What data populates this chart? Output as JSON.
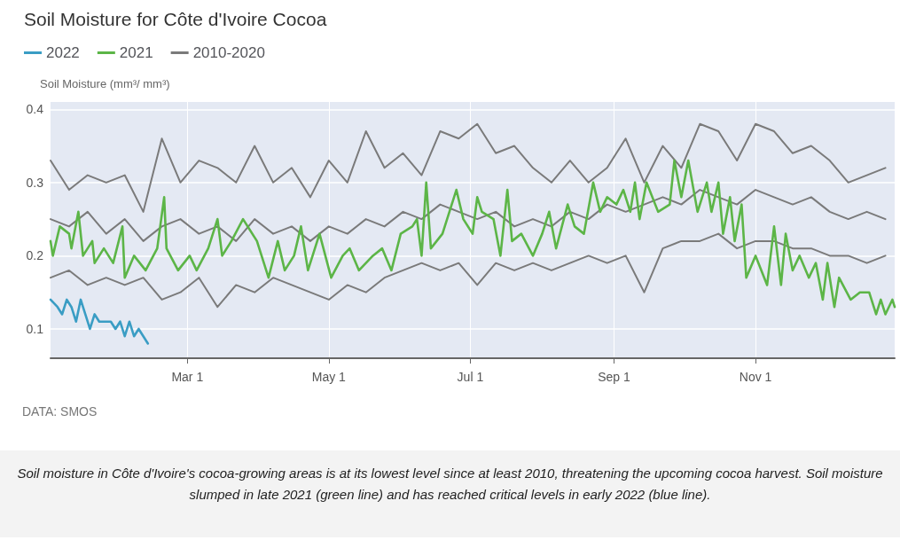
{
  "chart_data": {
    "type": "line",
    "title": "Soil Moisture for Côte d'Ivoire Cocoa",
    "ylabel": "Soil Moisture (mm³/ mm³)",
    "annotations": [
      "DATA: SMOS",
      "Soil moisture in Côte d'Ivoire's cocoa-growing areas is at its lowest level since at least 2010, threatening the upcoming cocoa harvest. Soil moisture slumped in late 2021 (green line) and has reached critical levels in early 2022 (blue line)."
    ],
    "legend": "top left",
    "grid": true,
    "marker": "none",
    "line_style": "solid",
    "xlim": [
      "--01-01",
      "--12-31"
    ],
    "xticks": [
      {
        "value": "--03-01",
        "label": "Mar 1"
      },
      {
        "value": "--05-01",
        "label": "May 1"
      },
      {
        "value": "--07-01",
        "label": "Jul 1"
      },
      {
        "value": "--09-01",
        "label": "Sep 1"
      },
      {
        "value": "--11-01",
        "label": "Nov 1"
      }
    ],
    "ylim": [
      0.06,
      0.41
    ],
    "yticks": [
      0.1,
      0.2,
      0.3,
      0.4
    ],
    "x": [
      "--01-01",
      "--01-09",
      "--01-17",
      "--01-25",
      "--02-02",
      "--02-10",
      "--02-18",
      "--02-26",
      "--03-06",
      "--03-14",
      "--03-22",
      "--03-30",
      "--04-07",
      "--04-15",
      "--04-23",
      "--05-01",
      "--05-09",
      "--05-17",
      "--05-25",
      "--06-02",
      "--06-10",
      "--06-18",
      "--06-26",
      "--07-04",
      "--07-12",
      "--07-20",
      "--07-28",
      "--08-05",
      "--08-13",
      "--08-21",
      "--08-29",
      "--09-06",
      "--09-14",
      "--09-22",
      "--09-30",
      "--10-08",
      "--10-16",
      "--10-24",
      "--11-01",
      "--11-09",
      "--11-17",
      "--11-25",
      "--12-03",
      "--12-11",
      "--12-19",
      "--12-27"
    ],
    "series": [
      {
        "name": "2010-2020",
        "color": "#7a7a7a",
        "values": [
          0.33,
          0.29,
          0.31,
          0.3,
          0.31,
          0.26,
          0.36,
          0.3,
          0.33,
          0.32,
          0.3,
          0.35,
          0.3,
          0.32,
          0.28,
          0.33,
          0.3,
          0.37,
          0.32,
          0.34,
          0.31,
          0.37,
          0.36,
          0.38,
          0.34,
          0.35,
          0.32,
          0.3,
          0.33,
          0.3,
          0.32,
          0.36,
          0.3,
          0.35,
          0.32,
          0.38,
          0.37,
          0.33,
          0.38,
          0.37,
          0.34,
          0.35,
          0.33,
          0.3,
          0.31,
          0.32
        ]
      },
      {
        "color": "#7a7a7a",
        "values": [
          0.25,
          0.24,
          0.26,
          0.23,
          0.25,
          0.22,
          0.24,
          0.25,
          0.23,
          0.24,
          0.22,
          0.25,
          0.23,
          0.24,
          0.22,
          0.24,
          0.23,
          0.25,
          0.24,
          0.26,
          0.25,
          0.27,
          0.26,
          0.25,
          0.26,
          0.24,
          0.25,
          0.24,
          0.26,
          0.25,
          0.27,
          0.26,
          0.27,
          0.28,
          0.27,
          0.29,
          0.28,
          0.27,
          0.29,
          0.28,
          0.27,
          0.28,
          0.26,
          0.25,
          0.26,
          0.25
        ]
      },
      {
        "color": "#7a7a7a",
        "values": [
          0.17,
          0.18,
          0.16,
          0.17,
          0.16,
          0.17,
          0.14,
          0.15,
          0.17,
          0.13,
          0.16,
          0.15,
          0.17,
          0.16,
          0.15,
          0.14,
          0.16,
          0.15,
          0.17,
          0.18,
          0.19,
          0.18,
          0.19,
          0.16,
          0.19,
          0.18,
          0.19,
          0.18,
          0.19,
          0.2,
          0.19,
          0.2,
          0.15,
          0.21,
          0.22,
          0.22,
          0.23,
          0.21,
          0.22,
          0.22,
          0.21,
          0.21,
          0.2,
          0.2,
          0.19,
          0.2
        ]
      },
      {
        "name": "2021",
        "color": "#5cb547",
        "x": [
          "--01-01",
          "--01-02",
          "--01-05",
          "--01-09",
          "--01-10",
          "--01-13",
          "--01-15",
          "--01-19",
          "--01-20",
          "--01-24",
          "--01-28",
          "--02-01",
          "--02-02",
          "--02-06",
          "--02-11",
          "--02-16",
          "--02-19",
          "--02-20",
          "--02-25",
          "--03-02",
          "--03-05",
          "--03-10",
          "--03-14",
          "--03-16",
          "--03-20",
          "--03-25",
          "--03-31",
          "--04-05",
          "--04-09",
          "--04-12",
          "--04-16",
          "--04-19",
          "--04-22",
          "--04-27",
          "--05-02",
          "--05-07",
          "--05-10",
          "--05-14",
          "--05-20",
          "--05-24",
          "--05-28",
          "--06-01",
          "--06-06",
          "--06-08",
          "--06-10",
          "--06-12",
          "--06-14",
          "--06-19",
          "--06-22",
          "--06-25",
          "--06-28",
          "--07-02",
          "--07-04",
          "--07-06",
          "--07-11",
          "--07-14",
          "--07-17",
          "--07-19",
          "--07-23",
          "--07-28",
          "--08-01",
          "--08-04",
          "--08-07",
          "--08-12",
          "--08-15",
          "--08-19",
          "--08-23",
          "--08-26",
          "--08-29",
          "--09-02",
          "--09-05",
          "--09-08",
          "--09-10",
          "--09-12",
          "--09-15",
          "--09-20",
          "--09-25",
          "--09-27",
          "--09-30",
          "--10-03",
          "--10-07",
          "--10-11",
          "--10-13",
          "--10-16",
          "--10-18",
          "--10-21",
          "--10-23",
          "--10-26",
          "--10-28",
          "--11-01",
          "--11-06",
          "--11-09",
          "--11-12",
          "--11-14",
          "--11-17",
          "--11-20",
          "--11-24",
          "--11-27",
          "--11-30",
          "--12-02",
          "--12-05",
          "--12-07",
          "--12-12",
          "--12-16",
          "--12-20",
          "--12-23",
          "--12-25",
          "--12-27",
          "--12-30",
          "--12-31"
        ],
        "values": [
          0.22,
          0.2,
          0.24,
          0.23,
          0.21,
          0.26,
          0.2,
          0.22,
          0.19,
          0.21,
          0.19,
          0.24,
          0.17,
          0.2,
          0.18,
          0.21,
          0.28,
          0.21,
          0.18,
          0.2,
          0.18,
          0.21,
          0.25,
          0.2,
          0.22,
          0.25,
          0.22,
          0.17,
          0.22,
          0.18,
          0.2,
          0.24,
          0.18,
          0.23,
          0.17,
          0.2,
          0.21,
          0.18,
          0.2,
          0.21,
          0.18,
          0.23,
          0.24,
          0.25,
          0.2,
          0.3,
          0.21,
          0.23,
          0.26,
          0.29,
          0.25,
          0.23,
          0.28,
          0.26,
          0.25,
          0.2,
          0.29,
          0.22,
          0.23,
          0.2,
          0.23,
          0.26,
          0.21,
          0.27,
          0.24,
          0.23,
          0.3,
          0.26,
          0.28,
          0.27,
          0.29,
          0.26,
          0.3,
          0.25,
          0.3,
          0.26,
          0.27,
          0.33,
          0.28,
          0.33,
          0.26,
          0.3,
          0.26,
          0.3,
          0.23,
          0.28,
          0.22,
          0.27,
          0.17,
          0.2,
          0.16,
          0.24,
          0.16,
          0.23,
          0.18,
          0.2,
          0.17,
          0.19,
          0.14,
          0.19,
          0.13,
          0.17,
          0.14,
          0.15,
          0.15,
          0.12,
          0.14,
          0.12,
          0.14,
          0.13
        ]
      },
      {
        "name": "2022",
        "color": "#3a9dc4",
        "x": [
          "--01-01",
          "--01-04",
          "--01-06",
          "--01-08",
          "--01-10",
          "--01-12",
          "--01-14",
          "--01-16",
          "--01-18",
          "--01-20",
          "--01-22",
          "--01-24",
          "--01-27",
          "--01-29",
          "--01-31",
          "--02-02",
          "--02-04",
          "--02-06",
          "--02-08",
          "--02-10",
          "--02-12"
        ],
        "values": [
          0.14,
          0.13,
          0.12,
          0.14,
          0.13,
          0.11,
          0.14,
          0.12,
          0.1,
          0.12,
          0.11,
          0.11,
          0.11,
          0.1,
          0.11,
          0.09,
          0.11,
          0.09,
          0.1,
          0.09,
          0.08
        ]
      }
    ]
  }
}
